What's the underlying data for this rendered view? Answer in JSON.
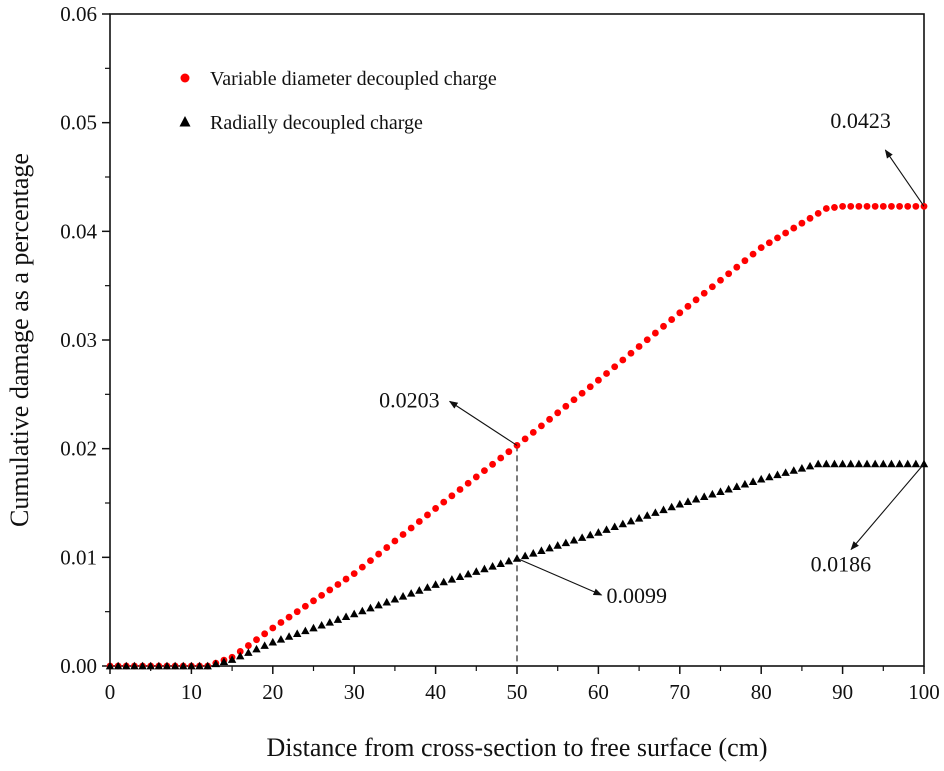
{
  "chart_data": {
    "type": "scatter",
    "xlabel": "Distance from cross-section to free surface (cm)",
    "ylabel": "Cumulative damage as a percentage",
    "xlim": [
      0,
      100
    ],
    "ylim": [
      0,
      0.06
    ],
    "xticks": [
      "0",
      "10",
      "20",
      "30",
      "40",
      "50",
      "60",
      "70",
      "80",
      "90",
      "100"
    ],
    "yticks": [
      "0.00",
      "0.01",
      "0.02",
      "0.03",
      "0.04",
      "0.05",
      "0.06"
    ],
    "grid": false,
    "legend_position": "top-left",
    "series": [
      {
        "name": "Variable diameter decoupled charge",
        "marker": "circle",
        "color": "#ff0000",
        "x_start": 0,
        "x_end": 100,
        "x_step": 1,
        "curve_points": [
          [
            0,
            0
          ],
          [
            12,
            0
          ],
          [
            15,
            0.0008
          ],
          [
            20,
            0.0035
          ],
          [
            30,
            0.0085
          ],
          [
            40,
            0.0145
          ],
          [
            50,
            0.0203
          ],
          [
            60,
            0.0263
          ],
          [
            70,
            0.0325
          ],
          [
            80,
            0.0385
          ],
          [
            88,
            0.0421
          ],
          [
            90,
            0.0423
          ],
          [
            100,
            0.0423
          ]
        ]
      },
      {
        "name": "Radially decoupled charge",
        "marker": "triangle",
        "color": "#000000",
        "x_start": 0,
        "x_end": 100,
        "x_step": 1,
        "curve_points": [
          [
            0,
            0
          ],
          [
            12,
            0
          ],
          [
            15,
            0.0006
          ],
          [
            20,
            0.0022
          ],
          [
            30,
            0.0048
          ],
          [
            40,
            0.0075
          ],
          [
            50,
            0.0099
          ],
          [
            60,
            0.0123
          ],
          [
            70,
            0.0149
          ],
          [
            80,
            0.0172
          ],
          [
            87,
            0.0186
          ],
          [
            100,
            0.0186
          ]
        ]
      }
    ],
    "annotations": [
      {
        "text": "0.0423",
        "point": [
          100,
          0.0423
        ],
        "label_at": [
          88.5,
          0.0495
        ],
        "anchor": "start"
      },
      {
        "text": "0.0203",
        "point": [
          50,
          0.0203
        ],
        "label_at": [
          40.5,
          0.0238
        ],
        "anchor": "end"
      },
      {
        "text": "0.0099",
        "point": [
          50,
          0.0099
        ],
        "label_at": [
          61,
          0.0058
        ],
        "anchor": "start"
      },
      {
        "text": "0.0186",
        "point": [
          100,
          0.0186
        ],
        "label_at": [
          93.5,
          0.0087
        ],
        "anchor": "end"
      }
    ],
    "reference_line": {
      "x": 50,
      "y_from": 0,
      "y_to": 0.0203,
      "style": "dashed"
    }
  }
}
